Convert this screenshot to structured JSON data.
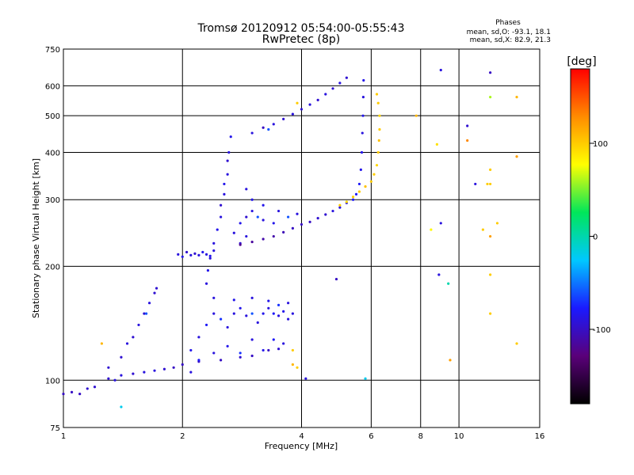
{
  "chart_data": {
    "type": "scatter",
    "title": "Tromsø 20120912 05:54:00-05:55:43",
    "subtitle": "RwPretec (8p)",
    "stats": {
      "heading": "Phases",
      "line1": "mean, sd,O: -93.1, 18.1",
      "line2": "mean, sd,X:  82.9, 21.3"
    },
    "xlabel": "Frequency [MHz]",
    "ylabel": "Stationary phase Virtual Height [km]",
    "xscale": "log",
    "yscale": "log",
    "xlim": [
      1,
      16
    ],
    "ylim": [
      75,
      750
    ],
    "xticks": [
      1,
      2,
      4,
      6,
      8,
      10,
      16
    ],
    "yticks": [
      75,
      100,
      200,
      300,
      400,
      500,
      600,
      750
    ],
    "grid": true,
    "colorbar": {
      "label": "[deg]",
      "range": [
        -180,
        180
      ],
      "ticks": [
        100,
        0,
        -100
      ],
      "colormap": [
        "#000000",
        "#5a007a",
        "#1a1aff",
        "#00c8ff",
        "#00e65a",
        "#ffff00",
        "#ff8c00",
        "#ff0000"
      ]
    },
    "series": [
      {
        "values": [
          [
            1.0,
            92,
            -100
          ],
          [
            1.05,
            93,
            -100
          ],
          [
            1.1,
            92,
            -100
          ],
          [
            1.15,
            95,
            -95
          ],
          [
            1.2,
            96,
            -95
          ],
          [
            1.3,
            101,
            -95
          ],
          [
            1.35,
            100,
            -90
          ],
          [
            1.4,
            103,
            -90
          ],
          [
            1.5,
            104,
            -95
          ],
          [
            1.6,
            105,
            -90
          ],
          [
            1.7,
            106,
            -90
          ],
          [
            1.8,
            107,
            -95
          ],
          [
            1.9,
            108,
            -100
          ],
          [
            2.0,
            110,
            -100
          ],
          [
            2.2,
            112,
            -100
          ],
          [
            2.5,
            113,
            -100
          ],
          [
            2.8,
            115,
            -95
          ],
          [
            3.0,
            116,
            -100
          ],
          [
            3.3,
            120,
            -100
          ],
          [
            3.5,
            121,
            -95
          ]
        ]
      },
      {
        "values": [
          [
            1.3,
            108,
            -95
          ],
          [
            1.4,
            115,
            -95
          ],
          [
            1.45,
            125,
            -90
          ],
          [
            1.5,
            130,
            -95
          ],
          [
            1.55,
            140,
            -90
          ],
          [
            1.6,
            150,
            -95
          ],
          [
            1.65,
            160,
            -90
          ],
          [
            1.7,
            170,
            -95
          ],
          [
            1.72,
            175,
            -95
          ],
          [
            1.62,
            150,
            -60
          ]
        ]
      },
      {
        "values": [
          [
            2.1,
            120,
            -85
          ],
          [
            2.2,
            130,
            -90
          ],
          [
            2.3,
            140,
            -80
          ],
          [
            2.4,
            150,
            -90
          ],
          [
            2.5,
            145,
            -70
          ],
          [
            2.6,
            138,
            -90
          ],
          [
            2.7,
            150,
            -90
          ],
          [
            2.8,
            155,
            -85
          ],
          [
            2.9,
            148,
            -90
          ],
          [
            3.0,
            150,
            -60
          ],
          [
            3.1,
            142,
            -90
          ],
          [
            3.2,
            150,
            -85
          ],
          [
            3.3,
            155,
            -90
          ],
          [
            3.4,
            150,
            -80
          ],
          [
            3.5,
            148,
            -90
          ],
          [
            3.6,
            152,
            -85
          ],
          [
            3.7,
            145,
            -90
          ],
          [
            3.8,
            150,
            -90
          ],
          [
            2.1,
            105,
            -90
          ],
          [
            2.2,
            113,
            -80
          ],
          [
            2.4,
            118,
            -90
          ],
          [
            2.6,
            123,
            -85
          ],
          [
            2.8,
            118,
            -70
          ],
          [
            3.0,
            128,
            -90
          ],
          [
            3.2,
            120,
            -85
          ],
          [
            3.4,
            128,
            -80
          ],
          [
            3.6,
            125,
            -90
          ],
          [
            3.8,
            120,
            100
          ],
          [
            3.8,
            110,
            110
          ],
          [
            3.9,
            108,
            100
          ],
          [
            3.7,
            160,
            -90
          ],
          [
            3.5,
            158,
            -70
          ],
          [
            3.3,
            162,
            -85
          ],
          [
            3.0,
            165,
            -90
          ],
          [
            2.7,
            163,
            -85
          ],
          [
            2.4,
            165,
            -90
          ]
        ]
      },
      {
        "values": [
          [
            1.95,
            215,
            -90
          ],
          [
            2.0,
            212,
            -85
          ],
          [
            2.05,
            218,
            -95
          ],
          [
            2.1,
            214,
            -90
          ],
          [
            2.15,
            216,
            -95
          ],
          [
            2.2,
            214,
            -90
          ],
          [
            2.25,
            218,
            -85
          ],
          [
            2.3,
            215,
            -90
          ],
          [
            2.35,
            213,
            -85
          ],
          [
            2.4,
            220,
            -90
          ]
        ]
      },
      {
        "values": [
          [
            2.3,
            180,
            -90
          ],
          [
            2.32,
            195,
            -85
          ],
          [
            2.35,
            210,
            -90
          ],
          [
            2.4,
            230,
            -90
          ],
          [
            2.45,
            250,
            -85
          ],
          [
            2.5,
            270,
            -90
          ],
          [
            2.5,
            290,
            -95
          ],
          [
            2.55,
            310,
            -90
          ],
          [
            2.55,
            330,
            -85
          ],
          [
            2.6,
            350,
            -90
          ],
          [
            2.6,
            380,
            -95
          ],
          [
            2.62,
            400,
            -90
          ],
          [
            2.65,
            440,
            -85
          ],
          [
            2.7,
            245,
            -90
          ],
          [
            2.8,
            260,
            -85
          ],
          [
            2.9,
            270,
            -95
          ],
          [
            3.0,
            280,
            -90
          ],
          [
            3.1,
            270,
            -60
          ],
          [
            3.2,
            265,
            -90
          ],
          [
            3.4,
            260,
            -85
          ],
          [
            3.5,
            280,
            -90
          ],
          [
            3.7,
            270,
            -60
          ],
          [
            3.9,
            275,
            -90
          ],
          [
            2.8,
            230,
            -95
          ],
          [
            2.9,
            240,
            -90
          ],
          [
            3.0,
            300,
            -85
          ],
          [
            2.9,
            320,
            -90
          ],
          [
            3.2,
            290,
            -85
          ]
        ]
      },
      {
        "values": [
          [
            2.8,
            228,
            -120
          ],
          [
            3.0,
            232,
            -115
          ],
          [
            3.2,
            236,
            -110
          ],
          [
            3.4,
            240,
            -110
          ],
          [
            3.6,
            246,
            -105
          ],
          [
            3.8,
            252,
            -100
          ],
          [
            4.0,
            258,
            -100
          ],
          [
            4.2,
            262,
            -100
          ],
          [
            4.4,
            268,
            -95
          ],
          [
            4.6,
            274,
            -95
          ],
          [
            4.8,
            280,
            -90
          ],
          [
            5.0,
            286,
            -90
          ],
          [
            5.2,
            294,
            -85
          ],
          [
            5.4,
            300,
            -80
          ],
          [
            5.5,
            310,
            -80
          ],
          [
            5.6,
            330,
            -80
          ],
          [
            5.65,
            360,
            -85
          ],
          [
            5.68,
            400,
            -85
          ],
          [
            5.7,
            450,
            -90
          ],
          [
            5.72,
            500,
            -85
          ],
          [
            5.73,
            560,
            -90
          ],
          [
            5.74,
            620,
            -85
          ]
        ]
      },
      {
        "values": [
          [
            5.0,
            290,
            100
          ],
          [
            5.2,
            296,
            95
          ],
          [
            5.4,
            305,
            100
          ],
          [
            5.6,
            315,
            100
          ],
          [
            5.8,
            325,
            105
          ],
          [
            6.0,
            335,
            100
          ],
          [
            6.1,
            350,
            100
          ],
          [
            6.2,
            370,
            95
          ],
          [
            6.25,
            400,
            100
          ],
          [
            6.28,
            430,
            105
          ],
          [
            6.3,
            460,
            100
          ],
          [
            6.3,
            500,
            95
          ],
          [
            6.25,
            540,
            100
          ],
          [
            6.2,
            570,
            100
          ]
        ]
      },
      {
        "values": [
          [
            3.0,
            450,
            -90
          ],
          [
            3.2,
            465,
            -100
          ],
          [
            3.4,
            475,
            -90
          ],
          [
            3.6,
            490,
            -95
          ],
          [
            3.8,
            505,
            -90
          ],
          [
            4.0,
            520,
            -95
          ],
          [
            4.2,
            535,
            -90
          ],
          [
            4.4,
            550,
            -95
          ],
          [
            4.6,
            570,
            -90
          ],
          [
            4.8,
            590,
            -95
          ],
          [
            5.0,
            610,
            -90
          ],
          [
            5.2,
            630,
            -95
          ],
          [
            3.3,
            460,
            -60
          ],
          [
            3.9,
            540,
            100
          ]
        ]
      },
      {
        "values": [
          [
            1.4,
            85,
            -20
          ],
          [
            1.25,
            125,
            110
          ],
          [
            4.1,
            101,
            -90
          ],
          [
            5.8,
            101,
            -20
          ],
          [
            4.9,
            185,
            -100
          ],
          [
            7.8,
            500,
            110
          ],
          [
            9.0,
            660,
            -90
          ],
          [
            9.0,
            260,
            -90
          ],
          [
            8.9,
            190,
            -90
          ],
          [
            9.4,
            180,
            0
          ],
          [
            10.5,
            470,
            -95
          ],
          [
            10.5,
            430,
            130
          ],
          [
            11.0,
            330,
            -90
          ],
          [
            12.0,
            650,
            -100
          ],
          [
            12.0,
            560,
            60
          ],
          [
            12.0,
            360,
            100
          ],
          [
            12.0,
            330,
            100
          ],
          [
            12.0,
            190,
            100
          ],
          [
            12.0,
            150,
            100
          ],
          [
            9.5,
            113,
            120
          ],
          [
            14.0,
            560,
            110
          ],
          [
            14.0,
            390,
            120
          ],
          [
            14.0,
            125,
            100
          ],
          [
            12.5,
            260,
            100
          ],
          [
            12.0,
            240,
            120
          ],
          [
            8.5,
            250,
            80
          ],
          [
            8.8,
            420,
            90
          ],
          [
            11.5,
            250,
            100
          ],
          [
            11.8,
            330,
            100
          ]
        ]
      }
    ]
  }
}
